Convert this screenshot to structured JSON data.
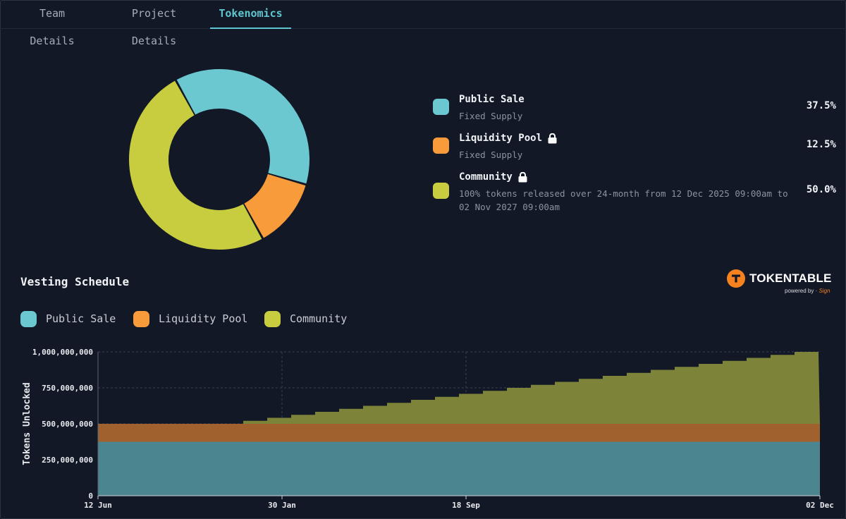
{
  "tabs": [
    {
      "label": "Team Details",
      "active": false
    },
    {
      "label": "Project Details",
      "active": false
    },
    {
      "label": "Tokenomics",
      "active": true
    }
  ],
  "allocations": [
    {
      "name": "Public Sale",
      "subtitle": "Fixed Supply",
      "percent_label": "37.5%",
      "percent": 37.5,
      "color": "#6bc8d0",
      "locked": false
    },
    {
      "name": "Liquidity Pool",
      "subtitle": "Fixed Supply",
      "percent_label": "12.5%",
      "percent": 12.5,
      "color": "#f89b3a",
      "locked": true
    },
    {
      "name": "Community",
      "subtitle": "100% tokens released over 24-month from 12 Dec 2025 09:00am to 02 Nov 2027 09:00am",
      "percent_label": "50.0%",
      "percent": 50.0,
      "color": "#c8cc3f",
      "locked": true
    }
  ],
  "vesting": {
    "title": "Vesting Schedule",
    "legend": [
      "Public Sale",
      "Liquidity Pool",
      "Community"
    ]
  },
  "brand": {
    "name": "TOKENTABLE",
    "powered_by": "powered by",
    "partner": "Sign"
  },
  "chart_data": [
    {
      "type": "pie",
      "variant": "donut",
      "categories": [
        "Public Sale",
        "Liquidity Pool",
        "Community"
      ],
      "values": [
        37.5,
        12.5,
        50.0
      ],
      "colors": [
        "#6bc8d0",
        "#f89b3a",
        "#c8cc3f"
      ]
    },
    {
      "type": "area",
      "stacked": true,
      "title": "Vesting Schedule",
      "ylabel": "Tokens Unlocked",
      "xlabel": "",
      "ylim": [
        0,
        1000000000
      ],
      "yticks": [
        0,
        250000000,
        500000000,
        750000000,
        1000000000
      ],
      "ytick_labels": [
        "0",
        "250,000,000",
        "500,000,000",
        "750,000,000",
        "1,000,000,000"
      ],
      "xtick_labels": [
        "12 Jun",
        "30 Jan",
        "18 Sep",
        "02 Dec"
      ],
      "xtick_positions": [
        0,
        0.2549,
        0.5098,
        1.0
      ],
      "legend_position": "top-left",
      "series": [
        {
          "name": "Public Sale",
          "color": "#4b8590",
          "value": 375000000
        },
        {
          "name": "Liquidity Pool",
          "color": "#a0612f",
          "value": 125000000
        },
        {
          "name": "Community",
          "color": "#7d8338",
          "start": 0.2012,
          "step": 0.0332,
          "steps": 24,
          "final": 500000000
        }
      ]
    }
  ]
}
